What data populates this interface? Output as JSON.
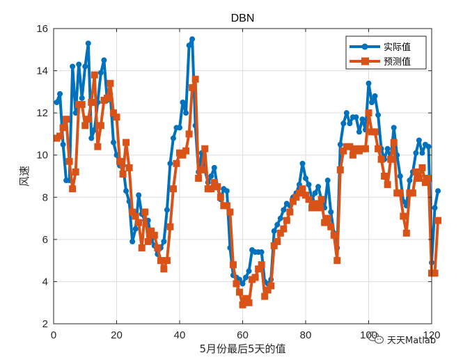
{
  "chart_data": {
    "type": "line",
    "title": "DBN",
    "xlabel": "5月份最后5天的值",
    "ylabel": "风速",
    "xlim": [
      0,
      120
    ],
    "ylim": [
      2,
      16
    ],
    "xticks": [
      0,
      20,
      40,
      60,
      80,
      100,
      120
    ],
    "yticks": [
      2,
      4,
      6,
      8,
      10,
      12,
      14,
      16
    ],
    "grid": true,
    "legend": "top-right",
    "series": [
      {
        "name": "实际值",
        "color": "#0072BD",
        "marker": "circle",
        "values": [
          12.5,
          12.9,
          10.5,
          8.8,
          8.8,
          14.2,
          12.0,
          14.3,
          12.7,
          14.2,
          15.3,
          10.8,
          11.2,
          12.5,
          13.9,
          14.5,
          12.6,
          12.9,
          10.6,
          10.0,
          9.5,
          9.5,
          8.3,
          7.8,
          5.9,
          6.5,
          8.1,
          7.2,
          6.9,
          6.9,
          6.0,
          5.7,
          5.3,
          5.6,
          5.9,
          7.4,
          9.6,
          10.8,
          11.3,
          11.3,
          12.5,
          12.0,
          15.2,
          15.5,
          11.4,
          9.2,
          10.1,
          9.3,
          8.7,
          9.0,
          9.4,
          8.5,
          7.9,
          8.4,
          8.3,
          5.6,
          4.3,
          4.2,
          4.1,
          3.9,
          4.2,
          4.5,
          5.5,
          5.4,
          5.4,
          5.4,
          4.0,
          3.9,
          4.1,
          6.4,
          6.7,
          7.0,
          7.4,
          7.7,
          7.6,
          8.0,
          8.2,
          8.6,
          9.6,
          8.9,
          8.6,
          7.9,
          8.2,
          8.5,
          7.9,
          7.5,
          8.8,
          7.3,
          6.3,
          5.6,
          10.5,
          11.5,
          12.0,
          11.5,
          11.8,
          11.8,
          11.1,
          11.7,
          11.2,
          13.4,
          12.5,
          12.8,
          11.9,
          10.3,
          9.8,
          10.3,
          9.8,
          11.3,
          10.0,
          9.0,
          7.8,
          7.6,
          8.8,
          9.2,
          10.1,
          10.7,
          10.1,
          10.5,
          10.4,
          4.9,
          7.5,
          8.3
        ]
      },
      {
        "name": "预测值",
        "color": "#D95319",
        "marker": "square",
        "values": [
          10.8,
          10.9,
          11.3,
          11.7,
          9.7,
          8.4,
          9.2,
          12.4,
          12.4,
          11.4,
          11.7,
          12.5,
          13.8,
          10.4,
          11.4,
          12.6,
          12.7,
          13.4,
          12.0,
          11.8,
          9.7,
          9.1,
          10.6,
          9.4,
          7.3,
          7.1,
          6.8,
          5.6,
          7.3,
          5.9,
          6.4,
          6.2,
          5.6,
          5.0,
          4.6,
          5.0,
          6.6,
          8.4,
          9.6,
          10.1,
          10.0,
          10.2,
          11.0,
          13.2,
          13.6,
          8.9,
          9.3,
          10.3,
          8.4,
          8.4,
          8.7,
          8.5,
          8.0,
          7.6,
          7.6,
          7.3,
          4.8,
          3.9,
          3.5,
          2.9,
          3.2,
          3.0,
          4.1,
          4.2,
          4.6,
          4.8,
          3.3,
          3.6,
          3.8,
          5.7,
          5.9,
          6.3,
          6.5,
          6.9,
          7.3,
          7.8,
          8.0,
          8.2,
          8.4,
          8.1,
          7.9,
          7.5,
          7.7,
          7.5,
          7.9,
          6.8,
          7.0,
          6.6,
          6.2,
          5.0,
          9.3,
          10.2,
          10.4,
          10.4,
          10.0,
          10.3,
          10.2,
          10.3,
          10.3,
          12.0,
          11.1,
          11.1,
          10.3,
          9.8,
          9.0,
          8.6,
          9.8,
          10.6,
          8.2,
          8.2,
          7.1,
          6.3,
          8.2,
          8.2,
          9.2,
          8.9,
          9.4,
          8.7,
          8.9,
          4.4,
          4.4,
          6.9
        ]
      }
    ]
  },
  "watermark": {
    "text": "天天Matlab"
  }
}
